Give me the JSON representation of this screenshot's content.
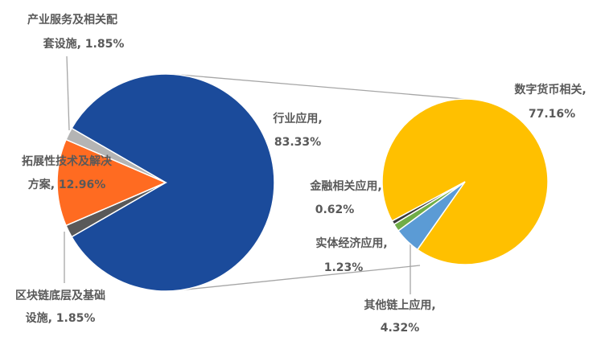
{
  "chart_data": [
    {
      "type": "pie",
      "values": [
        83.33,
        1.85,
        12.96,
        1.85
      ],
      "value_labels": [
        [
          "行业应用,",
          "83.33%"
        ],
        [
          "区块链底层及基础",
          "设施, 1.85%"
        ],
        [
          "拓展性技术及解决",
          "方案, 12.96%"
        ],
        [
          "产业服务及相关配",
          "套设施, 1.85%"
        ]
      ],
      "colors": [
        "#1b4b9b",
        "#595959",
        "#ff6b21",
        "#b4b4b4"
      ]
    },
    {
      "type": "pie",
      "values": [
        77.16,
        4.32,
        1.23,
        0.62
      ],
      "value_labels": [
        [
          "数字货币相关,",
          "77.16%"
        ],
        [
          "其他链上应用,",
          "4.32%"
        ],
        [
          "实体经济应用,",
          "1.23%"
        ],
        [
          "金融相关应用,",
          "0.62%"
        ]
      ],
      "colors": [
        "#ffc000",
        "#5b9bd5",
        "#70ad47",
        "#3a3a3a"
      ]
    }
  ]
}
